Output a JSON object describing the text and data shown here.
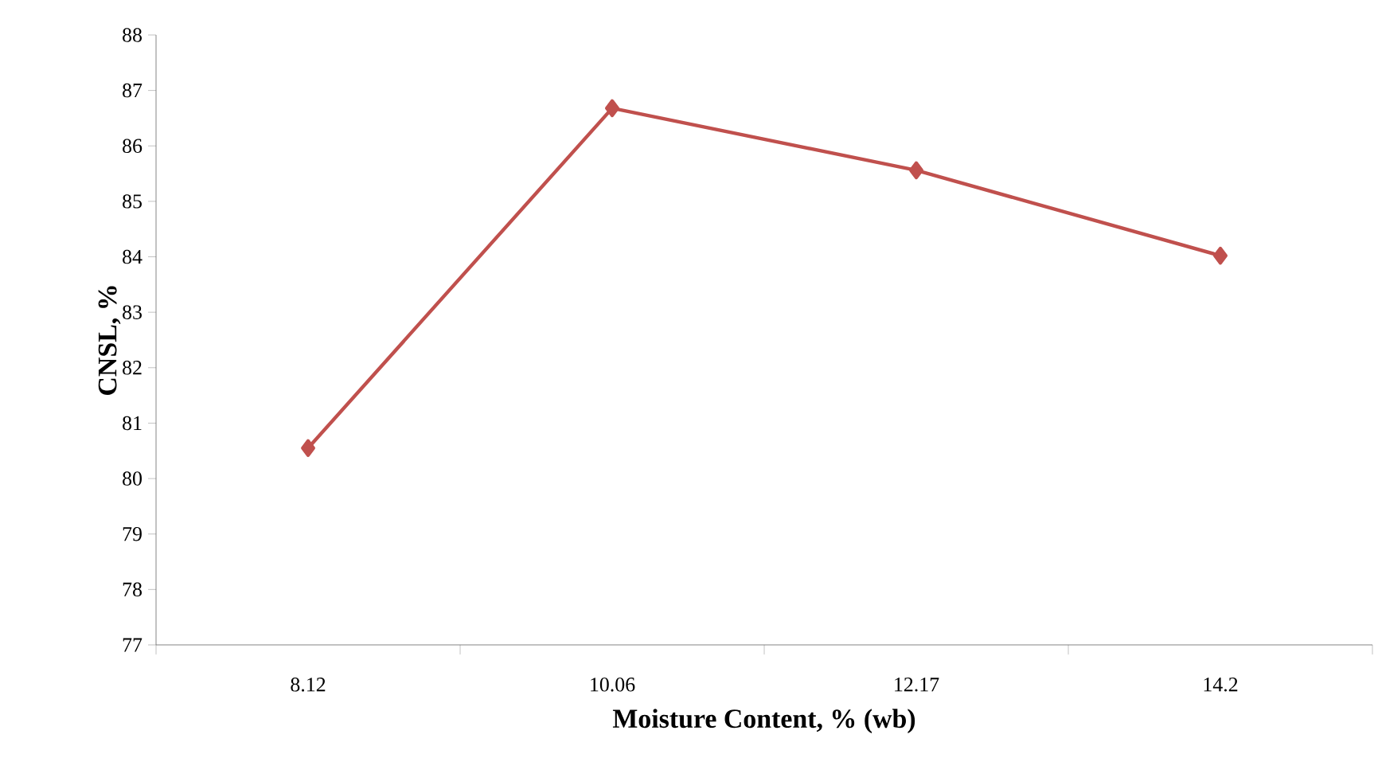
{
  "chart_data": {
    "type": "line",
    "xlabel": "Moisture Content, % (wb)",
    "ylabel": "CNSL, %",
    "categories": [
      "8.12",
      "10.06",
      "12.17",
      "14.2"
    ],
    "series": [
      {
        "color": "#c0504d",
        "values": [
          80.55,
          86.68,
          85.56,
          84.02
        ]
      }
    ],
    "ylim": [
      77,
      88
    ],
    "yticks": [
      77,
      78,
      79,
      80,
      81,
      82,
      83,
      84,
      85,
      86,
      87,
      88
    ],
    "marker": "diamond",
    "line_style": "solid"
  }
}
